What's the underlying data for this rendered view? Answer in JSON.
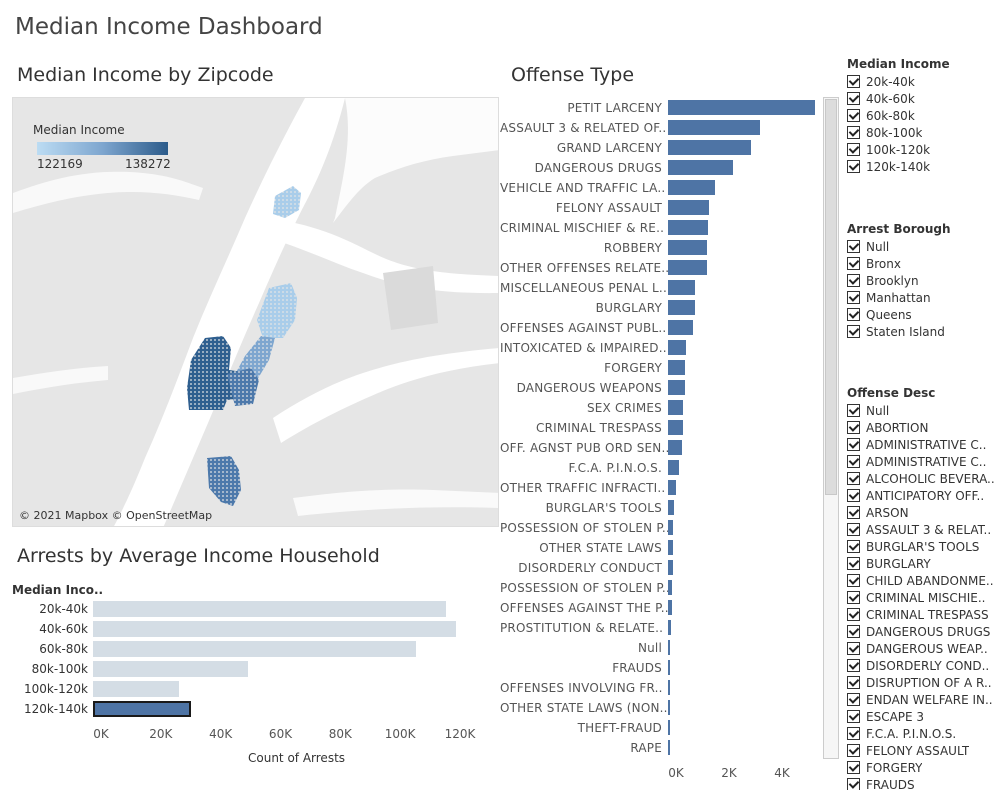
{
  "dashboard": {
    "title": "Median Income Dashboard"
  },
  "map": {
    "title": "Median Income by Zipcode",
    "legend": {
      "title": "Median Income",
      "min_label": "122169",
      "max_label": "138272",
      "color_low": "#bcdcf3",
      "color_high": "#2c5b8a"
    },
    "attribution": "© 2021 Mapbox © OpenStreetMap"
  },
  "arrests": {
    "title": "Arrests by Average Income Household",
    "header": "Median Inco..",
    "x_axis_label": "Count of Arrests",
    "chart_data": {
      "type": "bar",
      "orientation": "horizontal",
      "categories": [
        "20k-40k",
        "40k-60k",
        "60k-80k",
        "80k-100k",
        "100k-120k",
        "120k-140k"
      ],
      "values": [
        118500,
        122000,
        108500,
        52000,
        29000,
        33000
      ],
      "highlighted": "120k-140k",
      "xlim": [
        0,
        130000
      ],
      "x_ticks": [
        0,
        20000,
        40000,
        60000,
        80000,
        100000,
        120000
      ],
      "x_tick_labels": [
        "0K",
        "20K",
        "40K",
        "60K",
        "80K",
        "100K",
        "120K"
      ],
      "xlabel": "Count of Arrests",
      "colors": {
        "bar": "#d4dde5",
        "highlight": "#4e74a5"
      }
    }
  },
  "offense": {
    "title": "Offense Type",
    "chart_data": {
      "type": "bar",
      "orientation": "horizontal",
      "categories": [
        "PETIT LARCENY",
        "ASSAULT 3 & RELATED OF..",
        "GRAND LARCENY",
        "DANGEROUS DRUGS",
        "VEHICLE AND TRAFFIC LA..",
        "FELONY ASSAULT",
        "CRIMINAL MISCHIEF & RE..",
        "ROBBERY",
        "OTHER OFFENSES RELATE..",
        "MISCELLANEOUS PENAL L..",
        "BURGLARY",
        "OFFENSES AGAINST PUBL..",
        "INTOXICATED & IMPAIRED..",
        "FORGERY",
        "DANGEROUS WEAPONS",
        "SEX CRIMES",
        "CRIMINAL TRESPASS",
        "OFF. AGNST PUB ORD SEN..",
        "F.C.A. P.I.N.O.S.",
        "OTHER TRAFFIC INFRACTI..",
        "BURGLAR'S TOOLS",
        "POSSESSION OF STOLEN P..",
        "OTHER STATE LAWS",
        "DISORDERLY CONDUCT",
        "POSSESSION OF STOLEN P..",
        "OFFENSES AGAINST THE P..",
        "PROSTITUTION & RELATE..",
        "Null",
        "FRAUDS",
        "OFFENSES INVOLVING FR..",
        "OTHER STATE LAWS (NON..",
        "THEFT-FRAUD",
        "RAPE"
      ],
      "values": [
        5600,
        3500,
        3150,
        2480,
        1780,
        1560,
        1530,
        1500,
        1480,
        1030,
        1020,
        940,
        700,
        640,
        630,
        580,
        560,
        520,
        400,
        290,
        230,
        200,
        190,
        180,
        170,
        140,
        110,
        90,
        70,
        60,
        50,
        40,
        30
      ],
      "xlim": [
        0,
        6000
      ],
      "x_ticks": [
        0,
        2000,
        4000
      ],
      "x_tick_labels": [
        "0K",
        "2K",
        "4K"
      ],
      "colors": {
        "bar": "#4e74a5"
      }
    }
  },
  "filters": {
    "median_income": {
      "title": "Median Income",
      "items": [
        "20k-40k",
        "40k-60k",
        "60k-80k",
        "80k-100k",
        "100k-120k",
        "120k-140k"
      ]
    },
    "arrest_borough": {
      "title": "Arrest Borough",
      "items": [
        "Null",
        "Bronx",
        "Brooklyn",
        "Manhattan",
        "Queens",
        "Staten Island"
      ]
    },
    "offense_desc": {
      "title": "Offense Desc",
      "items": [
        "Null",
        "ABORTION",
        "ADMINISTRATIVE C..",
        "ADMINISTRATIVE C..",
        "ALCOHOLIC BEVERA..",
        "ANTICIPATORY OFF..",
        "ARSON",
        "ASSAULT 3 & RELAT..",
        "BURGLAR'S TOOLS",
        "BURGLARY",
        "CHILD ABANDONME..",
        "CRIMINAL MISCHIE..",
        "CRIMINAL TRESPASS",
        "DANGEROUS DRUGS",
        "DANGEROUS WEAP..",
        "DISORDERLY COND..",
        "DISRUPTION OF A R..",
        "ENDAN WELFARE IN..",
        "ESCAPE 3",
        "F.C.A. P.I.N.O.S.",
        "FELONY ASSAULT",
        "FORGERY",
        "FRAUDS"
      ]
    }
  }
}
